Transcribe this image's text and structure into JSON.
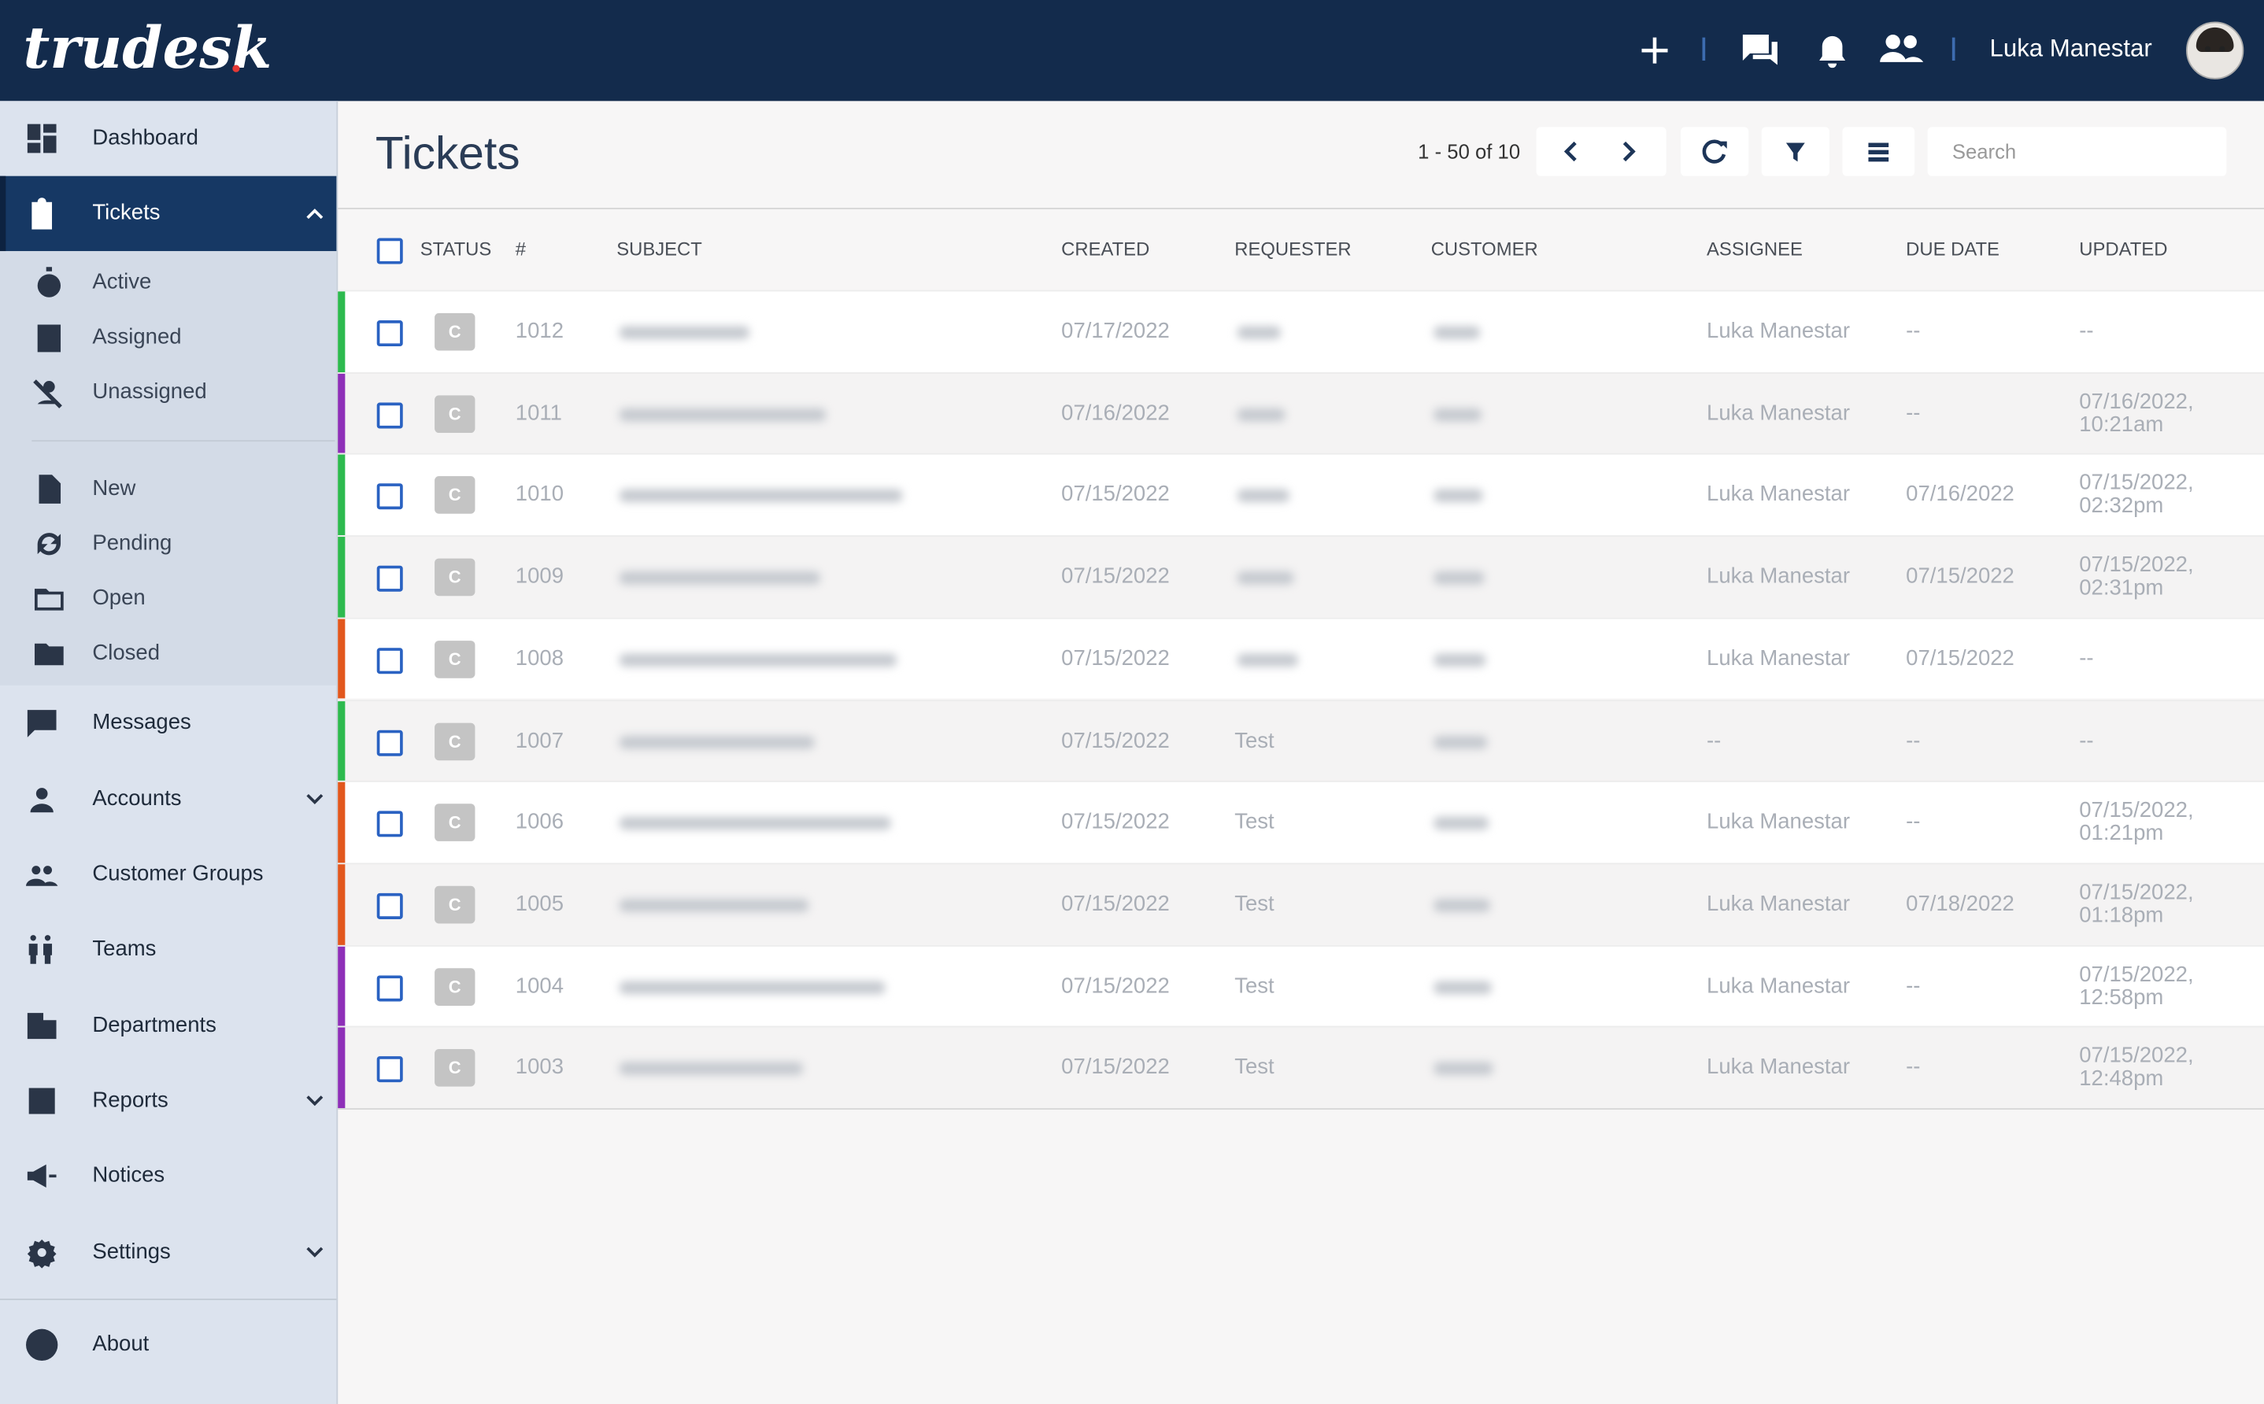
{
  "header": {
    "logo": "trudesk",
    "user": "Luka Manestar"
  },
  "sidebar": {
    "main": [
      "Dashboard",
      "Tickets",
      "Messages",
      "Accounts",
      "Customer Groups",
      "Teams",
      "Departments",
      "Reports",
      "Notices",
      "Settings"
    ],
    "ticket_views": [
      "Active",
      "Assigned",
      "Unassigned"
    ],
    "ticket_status": [
      "New",
      "Pending",
      "Open",
      "Closed"
    ],
    "footer": "About"
  },
  "toolbar": {
    "title": "Tickets",
    "pagination": "1 - 50 of 10",
    "search_placeholder": "Search"
  },
  "table": {
    "columns": [
      "STATUS",
      "#",
      "SUBJECT",
      "CREATED",
      "REQUESTER",
      "CUSTOMER",
      "ASSIGNEE",
      "DUE DATE",
      "UPDATED"
    ],
    "rows": [
      {
        "color": "#2dba4e",
        "status": "C",
        "id": "1012",
        "created": "07/17/2022",
        "requester": null,
        "assignee": "Luka Manestar",
        "due": "--",
        "updated": "--"
      },
      {
        "color": "#8e2fb8",
        "status": "C",
        "id": "1011",
        "created": "07/16/2022",
        "requester": null,
        "assignee": "Luka Manestar",
        "due": "--",
        "updated": "07/16/2022, 10:21am"
      },
      {
        "color": "#2dba4e",
        "status": "C",
        "id": "1010",
        "created": "07/15/2022",
        "requester": null,
        "assignee": "Luka Manestar",
        "due": "07/16/2022",
        "updated": "07/15/2022, 02:32pm"
      },
      {
        "color": "#2dba4e",
        "status": "C",
        "id": "1009",
        "created": "07/15/2022",
        "requester": null,
        "assignee": "Luka Manestar",
        "due": "07/15/2022",
        "updated": "07/15/2022, 02:31pm"
      },
      {
        "color": "#e2571d",
        "status": "C",
        "id": "1008",
        "created": "07/15/2022",
        "requester": null,
        "assignee": "Luka Manestar",
        "due": "07/15/2022",
        "updated": "--"
      },
      {
        "color": "#2dba4e",
        "status": "C",
        "id": "1007",
        "created": "07/15/2022",
        "requester": "Test",
        "assignee": "--",
        "due": "--",
        "updated": "--"
      },
      {
        "color": "#e2571d",
        "status": "C",
        "id": "1006",
        "created": "07/15/2022",
        "requester": "Test",
        "assignee": "Luka Manestar",
        "due": "--",
        "updated": "07/15/2022, 01:21pm"
      },
      {
        "color": "#e2571d",
        "status": "C",
        "id": "1005",
        "created": "07/15/2022",
        "requester": "Test",
        "assignee": "Luka Manestar",
        "due": "07/18/2022",
        "updated": "07/15/2022, 01:18pm"
      },
      {
        "color": "#8e2fb8",
        "status": "C",
        "id": "1004",
        "created": "07/15/2022",
        "requester": "Test",
        "assignee": "Luka Manestar",
        "due": "--",
        "updated": "07/15/2022, 12:58pm"
      },
      {
        "color": "#8e2fb8",
        "status": "C",
        "id": "1003",
        "created": "07/15/2022",
        "requester": "Test",
        "assignee": "Luka Manestar",
        "due": "--",
        "updated": "07/15/2022, 12:48pm"
      }
    ]
  }
}
